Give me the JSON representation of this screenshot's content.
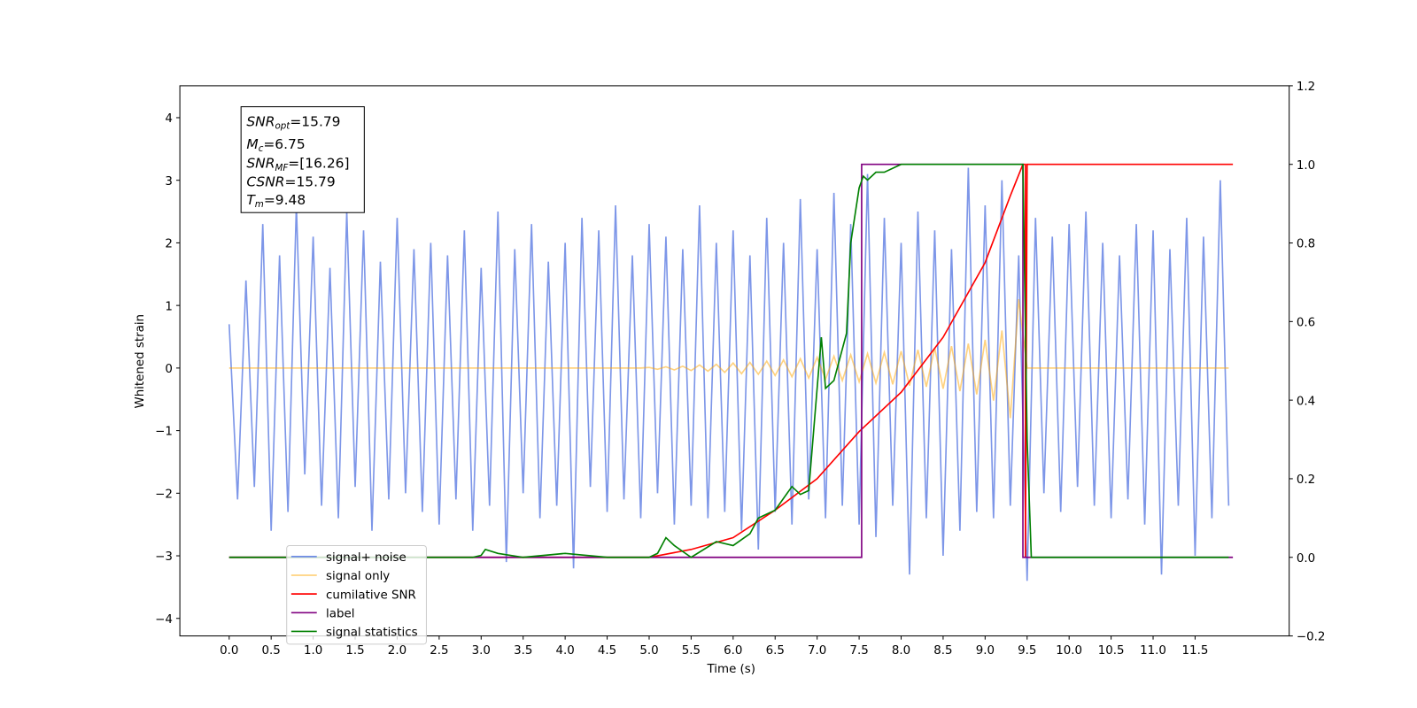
{
  "chart_data": {
    "type": "line",
    "xlabel": "Time (s)",
    "ylabel": "Whitened strain",
    "annotation": [
      [
        "SNR",
        "opt",
        "=15.79"
      ],
      [
        "M",
        "c",
        "=6.75"
      ],
      [
        "SNR",
        "MF",
        "=[16.26]"
      ],
      [
        "CSNR",
        "",
        "=15.79"
      ],
      [
        "T",
        "m",
        "=9.48"
      ]
    ],
    "xlim": [
      -0.587,
      12.62
    ],
    "ylim": [
      -4.28,
      4.51
    ],
    "y2lim": [
      -0.2,
      1.2
    ],
    "xticks": [
      {
        "value": 0,
        "label": "0.0"
      },
      {
        "value": 0.5,
        "label": "0.5"
      },
      {
        "value": 1,
        "label": "1.0"
      },
      {
        "value": 1.5,
        "label": "1.5"
      },
      {
        "value": 2,
        "label": "2.0"
      },
      {
        "value": 2.5,
        "label": "2.5"
      },
      {
        "value": 3,
        "label": "3.0"
      },
      {
        "value": 3.5,
        "label": "3.5"
      },
      {
        "value": 4,
        "label": "4.0"
      },
      {
        "value": 4.5,
        "label": "4.5"
      },
      {
        "value": 5,
        "label": "5.0"
      },
      {
        "value": 5.5,
        "label": "5.5"
      },
      {
        "value": 6,
        "label": "6.0"
      },
      {
        "value": 6.5,
        "label": "6.5"
      },
      {
        "value": 7,
        "label": "7.0"
      },
      {
        "value": 7.5,
        "label": "7.5"
      },
      {
        "value": 8,
        "label": "8.0"
      },
      {
        "value": 8.5,
        "label": "8.5"
      },
      {
        "value": 9,
        "label": "9.0"
      },
      {
        "value": 9.5,
        "label": "9.5"
      },
      {
        "value": 10,
        "label": "10.0"
      },
      {
        "value": 10.5,
        "label": "10.5"
      },
      {
        "value": 11,
        "label": "11.0"
      },
      {
        "value": 11.5,
        "label": "11.5"
      }
    ],
    "yticks": [
      {
        "value": -4,
        "label": "−4"
      },
      {
        "value": -3,
        "label": "−3"
      },
      {
        "value": -2,
        "label": "−2"
      },
      {
        "value": -1,
        "label": "−1"
      },
      0,
      1,
      2,
      3,
      4
    ],
    "y2ticks": [
      {
        "value": -0.2,
        "label": "−0.2"
      },
      {
        "value": 0,
        "label": "0.0"
      },
      {
        "value": 0.2,
        "label": "0.2"
      },
      {
        "value": 0.4,
        "label": "0.4"
      },
      {
        "value": 0.6,
        "label": "0.6"
      },
      {
        "value": 0.8,
        "label": "0.8"
      },
      {
        "value": 1,
        "label": "1.0"
      },
      {
        "value": 1.2,
        "label": "1.2"
      }
    ],
    "legend": "lower left",
    "x": [
      0,
      0.1,
      0.2,
      0.3,
      0.4,
      0.5,
      0.6,
      0.7,
      0.8,
      0.9,
      1,
      1.1,
      1.2,
      1.3,
      1.4,
      1.5,
      1.6,
      1.7,
      1.8,
      1.9,
      2,
      2.1,
      2.2,
      2.3,
      2.4,
      2.5,
      2.6,
      2.7,
      2.8,
      2.9,
      3,
      3.1,
      3.2,
      3.3,
      3.4,
      3.5,
      3.6,
      3.7,
      3.8,
      3.9,
      4,
      4.1,
      4.2,
      4.3,
      4.4,
      4.5,
      4.6,
      4.7,
      4.8,
      4.9,
      5,
      5.1,
      5.2,
      5.3,
      5.4,
      5.5,
      5.6,
      5.7,
      5.8,
      5.9,
      6,
      6.1,
      6.2,
      6.3,
      6.4,
      6.5,
      6.6,
      6.7,
      6.8,
      6.9,
      7,
      7.1,
      7.2,
      7.3,
      7.4,
      7.5,
      7.6,
      7.7,
      7.8,
      7.9,
      8,
      8.1,
      8.2,
      8.3,
      8.4,
      8.5,
      8.6,
      8.7,
      8.8,
      8.9,
      9,
      9.1,
      9.2,
      9.3,
      9.4,
      9.5,
      9.6,
      9.7,
      9.8,
      9.9,
      10,
      10.1,
      10.2,
      10.3,
      10.4,
      10.5,
      10.6,
      10.7,
      10.8,
      10.9,
      11,
      11.1,
      11.2,
      11.3,
      11.4,
      11.5,
      11.6,
      11.7,
      11.8,
      11.9
    ],
    "series": [
      {
        "name": "signal+ noise",
        "color": "#6f8be6",
        "values": [
          0.7,
          -2.1,
          1.4,
          -1.9,
          2.3,
          -2.6,
          1.8,
          -2.3,
          2.6,
          -1.7,
          2.1,
          -2.2,
          1.6,
          -2.4,
          2.5,
          -1.9,
          2.2,
          -2.6,
          1.7,
          -2.1,
          2.4,
          -2.0,
          1.9,
          -2.3,
          2.0,
          -2.5,
          1.8,
          -2.1,
          2.2,
          -2.6,
          1.6,
          -2.2,
          2.5,
          -3.1,
          1.9,
          -2.0,
          2.3,
          -2.4,
          1.7,
          -2.2,
          2.0,
          -3.2,
          2.4,
          -1.9,
          2.2,
          -2.3,
          2.6,
          -2.1,
          1.8,
          -2.4,
          2.3,
          -2.0,
          2.1,
          -2.5,
          1.9,
          -2.2,
          2.6,
          -2.4,
          2.0,
          -2.3,
          2.2,
          -2.6,
          1.8,
          -2.9,
          2.4,
          -2.3,
          2.0,
          -2.5,
          2.7,
          -2.1,
          1.9,
          -2.4,
          2.8,
          -2.2,
          2.3,
          -2.5,
          3.1,
          -2.7,
          2.4,
          -2.2,
          2.0,
          -3.3,
          2.5,
          -2.4,
          2.2,
          -3.0,
          1.9,
          -2.6,
          3.2,
          -2.3,
          2.6,
          -2.4,
          3.0,
          -2.2,
          1.8,
          -3.4,
          2.4,
          -2.0,
          2.1,
          -2.3,
          2.3,
          -1.9,
          2.5,
          -2.2,
          2.0,
          -2.4,
          1.8,
          -2.1,
          2.3,
          -2.5,
          2.2,
          -3.3,
          1.9,
          -2.2,
          2.4,
          -3.0,
          2.1,
          -2.4,
          3.0,
          -2.2
        ]
      },
      {
        "name": "signal only",
        "color": "#ffa500",
        "values": [
          0,
          0,
          0,
          0,
          0,
          0,
          0,
          0,
          0,
          0,
          0,
          0,
          0,
          0,
          0,
          0,
          0,
          0,
          0,
          0,
          0,
          0,
          0,
          0,
          0,
          0,
          0,
          0,
          0,
          0,
          0,
          0,
          0,
          0,
          0,
          0,
          0,
          0,
          0,
          0,
          0,
          0,
          0,
          0,
          0,
          0,
          0,
          0,
          0,
          0,
          0.01,
          -0.02,
          0.02,
          -0.03,
          0.03,
          -0.04,
          0.05,
          -0.05,
          0.06,
          -0.07,
          0.08,
          -0.09,
          0.09,
          -0.1,
          0.11,
          -0.12,
          0.13,
          -0.14,
          0.15,
          -0.16,
          0.17,
          -0.18,
          0.19,
          -0.2,
          0.21,
          -0.22,
          0.23,
          -0.24,
          0.25,
          -0.26,
          0.27,
          -0.28,
          0.29,
          -0.3,
          0.32,
          -0.33,
          0.35,
          -0.37,
          0.39,
          -0.42,
          0.45,
          -0.52,
          0.6,
          -0.8,
          1.1,
          0,
          0,
          0,
          0,
          0,
          0,
          0,
          0,
          0,
          0,
          0,
          0,
          0,
          0,
          0,
          0,
          0,
          0,
          0,
          0,
          0,
          0,
          0,
          0,
          0
        ]
      },
      {
        "name": "cumilative SNR",
        "color": "#ff0000",
        "axis": "y2",
        "x": [
          0,
          5,
          5.5,
          6,
          6.5,
          7,
          7.5,
          8,
          8.5,
          9,
          9.3,
          9.45,
          9.48,
          9.48,
          9.5,
          11.95
        ],
        "values": [
          0,
          0,
          0.02,
          0.05,
          0.12,
          0.2,
          0.32,
          0.42,
          0.56,
          0.75,
          0.92,
          1.0,
          1.0,
          0,
          1.0,
          1.0
        ]
      },
      {
        "name": "label",
        "color": "#800080",
        "axis": "y2",
        "x": [
          0,
          7.53,
          7.53,
          9.45,
          9.45,
          11.95
        ],
        "values": [
          0,
          0,
          1,
          1,
          0,
          0
        ]
      },
      {
        "name": "signal statistics",
        "color": "#008000",
        "axis": "y2",
        "x": [
          0,
          2.9,
          3.0,
          3.05,
          3.2,
          3.5,
          4.0,
          4.5,
          5.0,
          5.1,
          5.2,
          5.3,
          5.5,
          5.8,
          6.0,
          6.2,
          6.3,
          6.5,
          6.7,
          6.8,
          6.9,
          7.05,
          7.1,
          7.2,
          7.35,
          7.4,
          7.5,
          7.55,
          7.6,
          7.7,
          7.8,
          8.0,
          8.5,
          9.0,
          9.45,
          9.5,
          9.55,
          11.9
        ],
        "values": [
          0,
          0,
          0.005,
          0.02,
          0.01,
          0,
          0.01,
          0,
          0,
          0.01,
          0.05,
          0.03,
          0,
          0.04,
          0.03,
          0.06,
          0.1,
          0.12,
          0.18,
          0.16,
          0.17,
          0.56,
          0.43,
          0.45,
          0.57,
          0.8,
          0.94,
          0.97,
          0.96,
          0.98,
          0.98,
          1.0,
          1.0,
          1.0,
          1.0,
          0.3,
          0,
          0
        ]
      }
    ]
  }
}
